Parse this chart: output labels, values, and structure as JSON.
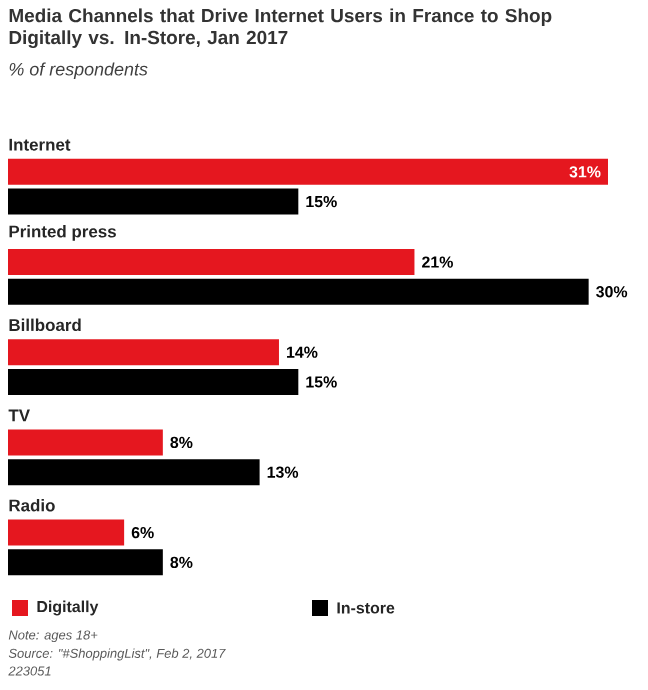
{
  "chart_data": {
    "type": "bar",
    "orientation": "horizontal",
    "title": "Media Channels that Drive Internet Users in France to Shop Digitally vs. In-Store, Jan 2017",
    "subtitle": "% of respondents",
    "categories": [
      "Internet",
      "Printed press",
      "Billboard",
      "TV",
      "Radio"
    ],
    "series": [
      {
        "name": "Digitally",
        "color": "#e5171f",
        "values": [
          31,
          21,
          14,
          8,
          6
        ],
        "value_labels": [
          "31%",
          "21%",
          "14%",
          "8%",
          "6%"
        ]
      },
      {
        "name": "In-store",
        "color": "#000000",
        "values": [
          15,
          30,
          15,
          13,
          8
        ],
        "value_labels": [
          "15%",
          "30%",
          "15%",
          "13%",
          "8%"
        ]
      }
    ],
    "legend": "bottom",
    "annotations": [
      "Note: ages 18+",
      "Source: \"#ShoppingList\", Feb 2, 2017",
      "223051"
    ]
  }
}
